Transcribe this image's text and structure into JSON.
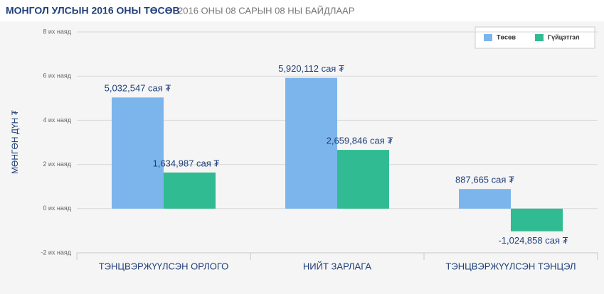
{
  "chart_data": {
    "type": "bar",
    "title": "МОНГОЛ УЛСЫН 2016 ОНЫ ТӨСӨВ",
    "subtitle": "2016 ОНЫ 08 САРЫН 08 НЫ БАЙДЛААР",
    "y_label": "МӨНГӨН ДҮН ₮",
    "categories": [
      "ТЭНЦВЭРЖҮҮЛСЭН ОРЛОГО",
      "НИЙТ ЗАРЛАГА",
      "ТЭНЦВЭРЖҮҮЛСЭН ТЭНЦЭЛ"
    ],
    "series": [
      {
        "name": "Төсөв",
        "color": "#7cb5ec",
        "values": [
          5.032547,
          5.920112,
          0.887665
        ],
        "value_labels": [
          "5,032,547 сая ₮",
          "5,920,112 сая ₮",
          "887,665 сая ₮"
        ]
      },
      {
        "name": "Гүйцэтгэл",
        "color": "#31bb92",
        "values": [
          1.634987,
          2.659846,
          -1.024858
        ],
        "value_labels": [
          "1,634,987 сая ₮",
          "2,659,846 сая ₮",
          "-1,024,858 сая ₮"
        ]
      }
    ],
    "ylim": [
      -2,
      8
    ],
    "yticks": [
      {
        "value": -2,
        "label": "-2 их наяд"
      },
      {
        "value": 0,
        "label": "0 их наяд"
      },
      {
        "value": 2,
        "label": "2 их наяд"
      },
      {
        "value": 4,
        "label": "4 их наяд"
      },
      {
        "value": 6,
        "label": "6 их наяд"
      },
      {
        "value": 8,
        "label": "8 их наяд"
      }
    ],
    "grid": true,
    "legend": "top-right"
  }
}
